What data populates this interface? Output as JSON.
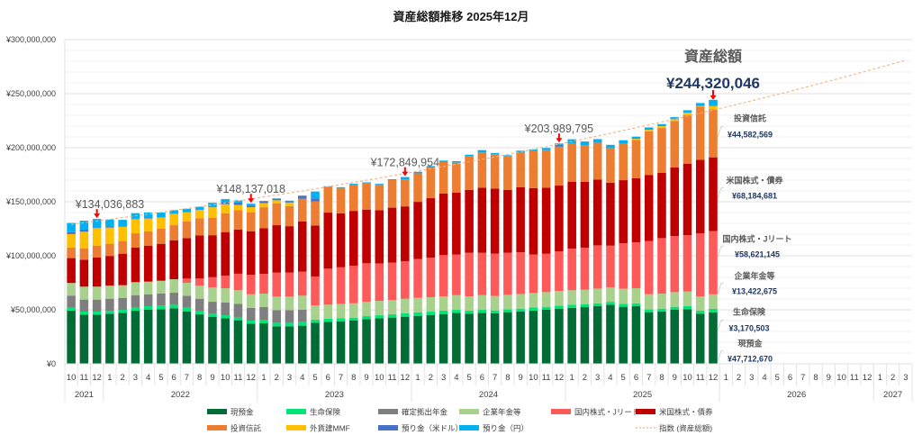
{
  "chart_data": {
    "type": "bar",
    "stacked": true,
    "title": "資産総額推移 2025年12月",
    "xlabel": "",
    "ylabel": "",
    "values_unit": "million JPY",
    "ylim": [
      0,
      300
    ],
    "y_major_step": 50,
    "y_minor_step": 10,
    "y_tick_labels": [
      "¥0",
      "¥50,000,000",
      "¥100,000,000",
      "¥150,000,000",
      "¥200,000,000",
      "¥250,000,000",
      "¥300,000,000"
    ],
    "grid": true,
    "legend_position": "bottom",
    "categories": [
      "2021-10",
      "2021-11",
      "2021-12",
      "2022-01",
      "2022-02",
      "2022-03",
      "2022-04",
      "2022-05",
      "2022-06",
      "2022-07",
      "2022-08",
      "2022-09",
      "2022-10",
      "2022-11",
      "2022-12",
      "2023-01",
      "2023-02",
      "2023-03",
      "2023-04",
      "2023-05",
      "2023-06",
      "2023-07",
      "2023-08",
      "2023-09",
      "2023-10",
      "2023-11",
      "2023-12",
      "2024-01",
      "2024-02",
      "2024-03",
      "2024-04",
      "2024-05",
      "2024-06",
      "2024-07",
      "2024-08",
      "2024-09",
      "2024-10",
      "2024-11",
      "2024-12",
      "2025-01",
      "2025-02",
      "2025-03",
      "2025-04",
      "2025-05",
      "2025-06",
      "2025-07",
      "2025-08",
      "2025-09",
      "2025-10",
      "2025-11",
      "2025-12",
      "2026-01",
      "2026-02",
      "2026-03",
      "2026-04",
      "2026-05",
      "2026-06",
      "2026-07",
      "2026-08",
      "2026-09",
      "2026-10",
      "2026-11",
      "2026-12",
      "2027-01",
      "2027-02",
      "2027-03"
    ],
    "x_month_labels": [
      "10",
      "11",
      "12",
      "1",
      "2",
      "3",
      "4",
      "5",
      "6",
      "7",
      "8",
      "9",
      "10",
      "11",
      "12",
      "1",
      "2",
      "3",
      "4",
      "5",
      "6",
      "7",
      "8",
      "9",
      "10",
      "11",
      "12",
      "1",
      "2",
      "3",
      "4",
      "5",
      "6",
      "7",
      "8",
      "9",
      "10",
      "11",
      "12",
      "1",
      "2",
      "3",
      "4",
      "5",
      "6",
      "7",
      "8",
      "9",
      "10",
      "11",
      "12",
      "1",
      "2",
      "3",
      "4",
      "5",
      "6",
      "7",
      "8",
      "9",
      "10",
      "11",
      "12",
      "1",
      "2",
      "3"
    ],
    "x_year_groups": [
      {
        "label": "2021",
        "span": 3
      },
      {
        "label": "2022",
        "span": 12
      },
      {
        "label": "2023",
        "span": 12
      },
      {
        "label": "2024",
        "span": 12
      },
      {
        "label": "2025",
        "span": 12
      },
      {
        "label": "2026",
        "span": 12
      },
      {
        "label": "2027",
        "span": 3
      }
    ],
    "series": [
      {
        "name": "現預金",
        "color": "#036B36",
        "values": [
          49.2,
          45.6,
          45.6,
          46.4,
          47.2,
          49.2,
          50.0,
          50.6,
          51.4,
          48.6,
          45.8,
          43.6,
          42.2,
          40.3,
          37.2,
          37.5,
          34.7,
          34.7,
          35.3,
          38.1,
          38.9,
          39.4,
          40.0,
          41.4,
          42.2,
          42.8,
          43.6,
          44.4,
          45.0,
          46.1,
          47.2,
          46.4,
          47.2,
          46.7,
          47.8,
          48.3,
          49.2,
          50.0,
          51.1,
          51.7,
          52.5,
          53.3,
          54.7,
          52.8,
          53.3,
          47.8,
          48.3,
          50.0,
          50.6,
          46.4,
          47.71
        ]
      },
      {
        "name": "生命保険",
        "color": "#00E676",
        "values": [
          2.75,
          2.75,
          2.75,
          2.75,
          2.75,
          3.3,
          3.3,
          3.3,
          3.3,
          3.3,
          2.75,
          2.75,
          2.75,
          2.5,
          2.75,
          3.3,
          3.3,
          3.3,
          3.3,
          2.75,
          2.75,
          2.75,
          2.75,
          2.75,
          2.75,
          3.1,
          3.3,
          3.3,
          3.3,
          3.1,
          2.75,
          2.75,
          2.75,
          2.75,
          2.75,
          2.75,
          3.1,
          2.75,
          2.75,
          3.1,
          2.75,
          2.75,
          2.75,
          2.75,
          2.75,
          2.75,
          2.75,
          2.75,
          2.75,
          2.75,
          3.17
        ]
      },
      {
        "name": "確定拠出年金",
        "color": "#7F7F7F",
        "values": [
          11.2,
          11.1,
          11.1,
          11.1,
          11.1,
          11.1,
          11.1,
          11.1,
          11.1,
          11.1,
          11.7,
          11.1,
          11.7,
          12.8,
          11.9,
          11.7,
          11.7,
          11.7,
          11.4,
          0,
          0,
          0,
          0,
          0,
          0,
          0,
          0,
          0,
          0,
          0,
          0,
          0,
          0,
          0,
          0,
          0,
          0,
          0,
          0,
          0,
          0,
          0,
          0,
          0,
          0,
          0,
          0,
          0,
          0,
          0,
          0
        ]
      },
      {
        "name": "企業年金等",
        "color": "#A9D18E",
        "values": [
          11.7,
          12.0,
          12.0,
          12.1,
          11.7,
          12.0,
          11.7,
          11.9,
          12.5,
          12.0,
          12.0,
          13.3,
          13.3,
          12.5,
          12.5,
          12.5,
          12.5,
          12.5,
          13.1,
          13.3,
          13.1,
          13.3,
          13.3,
          13.3,
          13.3,
          13.1,
          13.3,
          13.3,
          13.3,
          13.3,
          13.6,
          13.3,
          13.6,
          13.3,
          13.3,
          13.6,
          13.3,
          13.6,
          13.6,
          13.3,
          13.3,
          13.6,
          13.3,
          13.9,
          13.9,
          13.9,
          13.9,
          13.6,
          13.6,
          13.3,
          13.42
        ]
      },
      {
        "name": "国内株式・Jリート",
        "color": "#FF5A5A",
        "values": [
          0,
          0,
          0,
          0,
          0,
          0,
          0,
          0,
          0,
          3.9,
          6.7,
          9.4,
          11.7,
          15.3,
          18.1,
          18.3,
          22.2,
          22.2,
          22.2,
          26.7,
          33.3,
          33.9,
          34.7,
          35.6,
          34.7,
          34.7,
          34.7,
          36.1,
          36.7,
          38.1,
          37.5,
          40.3,
          39.2,
          39.2,
          38.9,
          38.6,
          35.6,
          35.5,
          36.7,
          38.6,
          38.9,
          40.0,
          38.6,
          42.2,
          42.5,
          49.2,
          51.4,
          51.9,
          52.2,
          58.3,
          58.62
        ]
      },
      {
        "name": "米国株式・債券",
        "color": "#C00000",
        "values": [
          23.0,
          25.0,
          26.9,
          27.5,
          29.2,
          31.9,
          33.3,
          34.2,
          36.1,
          37.5,
          40.0,
          38.9,
          40.3,
          40.8,
          40.3,
          42.2,
          43.9,
          43.0,
          46.4,
          47.2,
          51.9,
          50.0,
          50.8,
          49.7,
          49.2,
          50.8,
          50.8,
          52.8,
          55.0,
          56.9,
          57.3,
          58.3,
          60.3,
          60.3,
          58.1,
          60.3,
          61.4,
          61.2,
          60.8,
          61.9,
          61.1,
          60.8,
          58.3,
          58.3,
          59.4,
          61.2,
          60.5,
          63.6,
          66.1,
          68.1,
          68.18
        ]
      },
      {
        "name": "投資信託",
        "color": "#ED7D31",
        "values": [
          9.75,
          10.5,
          11.1,
          11.3,
          11.7,
          13.3,
          13.3,
          13.9,
          13.9,
          15.5,
          15.8,
          16.1,
          17.5,
          17.9,
          17.5,
          19.4,
          20.3,
          18.6,
          21.1,
          22.2,
          23.9,
          23.6,
          24.4,
          24.4,
          23.6,
          25.5,
          25.0,
          26.4,
          28.3,
          29.2,
          27.8,
          31.2,
          32.5,
          31.7,
          31.4,
          32.3,
          34.4,
          34.7,
          36.1,
          35.6,
          33.9,
          34.2,
          32.0,
          34.2,
          35.3,
          40.3,
          41.4,
          42.8,
          45.0,
          49.2,
          44.58
        ]
      },
      {
        "name": "外貨建MMF",
        "color": "#FFC000",
        "values": [
          12.5,
          15.3,
          16.2,
          15.0,
          13.1,
          13.1,
          11.7,
          10.3,
          10.6,
          8.3,
          7.8,
          9.7,
          8.3,
          5.0,
          4.7,
          3.9,
          2.8,
          3.3,
          0,
          0,
          0,
          0,
          0,
          0,
          0,
          0,
          0,
          0,
          0,
          0,
          0,
          0,
          0,
          0,
          0,
          0,
          0,
          0,
          0,
          0,
          0,
          0,
          0,
          0,
          1.1,
          1.4,
          1.7,
          1.7,
          2.2,
          0.5,
          2.9
        ]
      },
      {
        "name": "預り金（米ドル）",
        "color": "#4472C4",
        "values": [
          1.7,
          1.9,
          0.5,
          1.0,
          0.5,
          0.5,
          0.5,
          0.4,
          0.3,
          0.3,
          0.3,
          0.8,
          1.9,
          2.2,
          1.4,
          1.5,
          1.4,
          1.4,
          2.8,
          2.8,
          0,
          0,
          0,
          0,
          0,
          0,
          0,
          0,
          0,
          0,
          0,
          0,
          0,
          0,
          0,
          0,
          0,
          0,
          1.5,
          0,
          0,
          0,
          0,
          0,
          0,
          0,
          0,
          0,
          0,
          0,
          0.2
        ]
      },
      {
        "name": "預り金（円）",
        "color": "#00B0F0",
        "values": [
          8.6,
          8.3,
          7.9,
          6.4,
          6.0,
          5.0,
          5.1,
          4.3,
          3.0,
          3.0,
          2.5,
          3.4,
          2.8,
          2.0,
          1.79,
          0.5,
          0.3,
          0.3,
          0,
          6.4,
          0.5,
          0.5,
          0.8,
          0.8,
          0.8,
          0.8,
          2.15,
          1.4,
          1.4,
          1.4,
          1.4,
          1.3,
          2.2,
          1.1,
          0.8,
          1.4,
          1.4,
          2.0,
          1.44,
          3.6,
          3.3,
          3.3,
          3.0,
          2.75,
          2.0,
          2.2,
          1.9,
          1.9,
          2.2,
          2.8,
          5.54
        ]
      }
    ],
    "index_line": {
      "name": "指数 (資産総額)",
      "color": "#F4B183",
      "style": "dashed",
      "start_value": 129.0,
      "monthly_growth": 0.01205
    },
    "callouts": [
      {
        "category": "2021-12",
        "text": "¥134,036,883"
      },
      {
        "category": "2022-12",
        "text": "¥148,137,018"
      },
      {
        "category": "2023-12",
        "text": "¥172,849,954"
      },
      {
        "category": "2024-12",
        "text": "¥203,989,795"
      }
    ],
    "latest": {
      "category": "2025-12",
      "label": "資産総額",
      "total": "¥244,320,046",
      "breakdown": [
        {
          "name": "投資信託",
          "value": "¥44,582,569"
        },
        {
          "name": "米国株式・債券",
          "value": "¥68,184,681"
        },
        {
          "name": "国内株式・Jリート",
          "value": "¥58,621,145"
        },
        {
          "name": "企業年金等",
          "value": "¥13,422,675"
        },
        {
          "name": "生命保険",
          "value": "¥3,170,503"
        },
        {
          "name": "現預金",
          "value": "¥47,712,670"
        }
      ]
    },
    "accent_colors": {
      "arrow": "#FF0000",
      "value_text": "#1F3864"
    }
  }
}
